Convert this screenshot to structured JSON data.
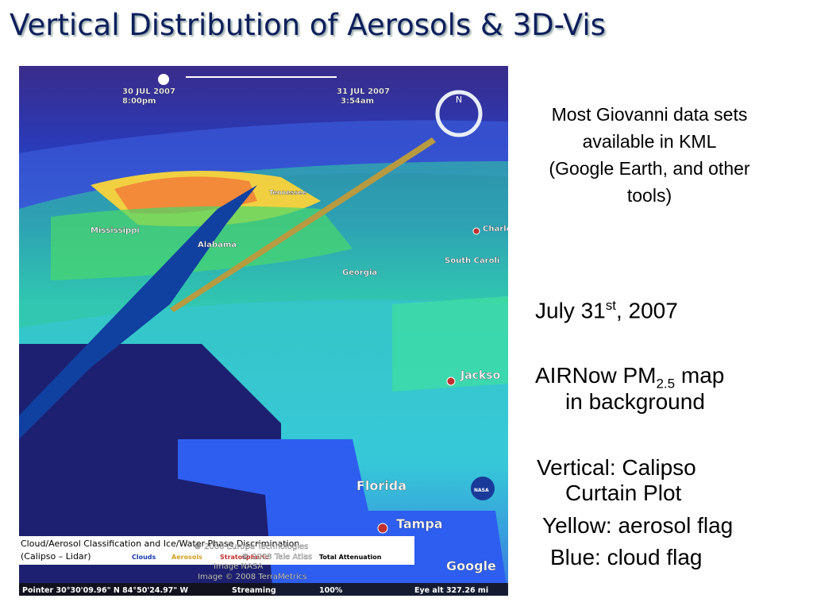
{
  "title": "Vertical Distribution of Aerosols & 3D-Vis",
  "side_note": [
    "Most Giovanni data sets",
    "available in KML",
    "(Google Earth, and other",
    "tools)"
  ],
  "date": {
    "main": "July 31",
    "sup": "st",
    "rest": ", 2007"
  },
  "airnow": {
    "main": "AIRNow PM",
    "sub": "2.5",
    "rest": " map",
    "line2": "in background"
  },
  "vertical": {
    "line1": "Vertical: Calipso",
    "line2": "Curtain Plot"
  },
  "yellow": "Yellow: aerosol flag",
  "blue": "Blue: cloud flag",
  "map": {
    "time_start": [
      "30 JUL 2007",
      "8:00pm"
    ],
    "time_end": [
      "31 JUL 2007",
      "3:54am"
    ],
    "places": [
      "Mississippi",
      "Alabama",
      "Georgia",
      "South Caroli",
      "Charle",
      "Jackso",
      "Florida",
      "Tampa",
      "Tennessee"
    ],
    "legend": {
      "title": "Cloud/Aerosol Classification and Ice/Water Phase Discrimination",
      "subtitle": "(Calipso – Lidar)",
      "items": [
        "Clouds",
        "Aerosols",
        "Stratospheric",
        "Total Attenuation"
      ]
    },
    "credits": [
      "© 2008 Europa Technologies",
      "© 2008 Tele Atlas",
      "Image NASA",
      "Image © 2008 TerraMetrics"
    ],
    "logos": [
      "Google",
      "NASA"
    ],
    "status": {
      "pointer": "Pointer  30°30'09.96\" N   84°50'24.97\" W",
      "streaming": "Streaming",
      "percent": "100%",
      "eye": "Eye alt   327.26 mi"
    }
  }
}
